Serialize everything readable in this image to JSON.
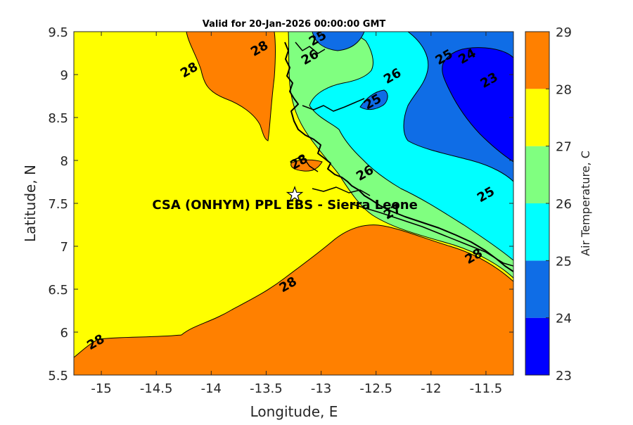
{
  "chart_data": {
    "type": "heatmap",
    "title": "Valid for 20-Jan-2026 00:00:00 GMT",
    "xlabel": "Longitude, E",
    "ylabel": "Latitude, N",
    "xlim": [
      -15.25,
      -11.25
    ],
    "ylim": [
      5.5,
      9.5
    ],
    "xticks": [
      {
        "value": -15,
        "label": "-15"
      },
      {
        "value": -14.5,
        "label": "-14.5"
      },
      {
        "value": -14,
        "label": "-14"
      },
      {
        "value": -13.5,
        "label": "-13.5"
      },
      {
        "value": -13,
        "label": "-13"
      },
      {
        "value": -12.5,
        "label": "-12.5"
      },
      {
        "value": -12,
        "label": "-12"
      },
      {
        "value": -11.5,
        "label": "-11.5"
      }
    ],
    "yticks": [
      {
        "value": 5.5,
        "label": "5.5"
      },
      {
        "value": 6,
        "label": "6"
      },
      {
        "value": 6.5,
        "label": "6.5"
      },
      {
        "value": 7,
        "label": "7"
      },
      {
        "value": 7.5,
        "label": "7.5"
      },
      {
        "value": 8,
        "label": "8"
      },
      {
        "value": 8.5,
        "label": "8.5"
      },
      {
        "value": 9,
        "label": "9"
      },
      {
        "value": 9.5,
        "label": "9.5"
      }
    ],
    "colorbar": {
      "label": "Air Temperature, C",
      "levels": [
        23,
        24,
        25,
        26,
        27,
        28,
        29
      ],
      "level_labels": [
        "23",
        "24",
        "25",
        "26",
        "27",
        "28",
        "29"
      ],
      "colors": [
        "#0000ff",
        "#0f6de6",
        "#00ffff",
        "#80ff80",
        "#ffff00",
        "#ff8000",
        "#ff0000"
      ]
    },
    "station": {
      "name": "CSA (ONHYM) PPL EBS  - Sierra Leone",
      "lon": -13.24,
      "lat": 7.6
    },
    "contour_labels": [
      {
        "value": "28",
        "lon": -14.2,
        "lat": 9.05
      },
      {
        "value": "28",
        "lon": -13.56,
        "lat": 9.3
      },
      {
        "value": "28",
        "lon": -13.2,
        "lat": 7.98
      },
      {
        "value": "28",
        "lon": -13.3,
        "lat": 6.55
      },
      {
        "value": "28",
        "lon": -15.05,
        "lat": 5.88
      },
      {
        "value": "28",
        "lon": -11.61,
        "lat": 6.88
      },
      {
        "value": "25",
        "lon": -13.03,
        "lat": 9.42
      },
      {
        "value": "26",
        "lon": -13.1,
        "lat": 9.2
      },
      {
        "value": "26",
        "lon": -12.35,
        "lat": 8.98
      },
      {
        "value": "25",
        "lon": -12.53,
        "lat": 8.68
      },
      {
        "value": "25",
        "lon": -11.88,
        "lat": 9.2
      },
      {
        "value": "24",
        "lon": -11.67,
        "lat": 9.21
      },
      {
        "value": "23",
        "lon": -11.47,
        "lat": 8.93
      },
      {
        "value": "26",
        "lon": -12.6,
        "lat": 7.85
      },
      {
        "value": "25",
        "lon": -11.5,
        "lat": 7.6
      },
      {
        "value": "27",
        "lon": -12.35,
        "lat": 7.4
      }
    ]
  }
}
